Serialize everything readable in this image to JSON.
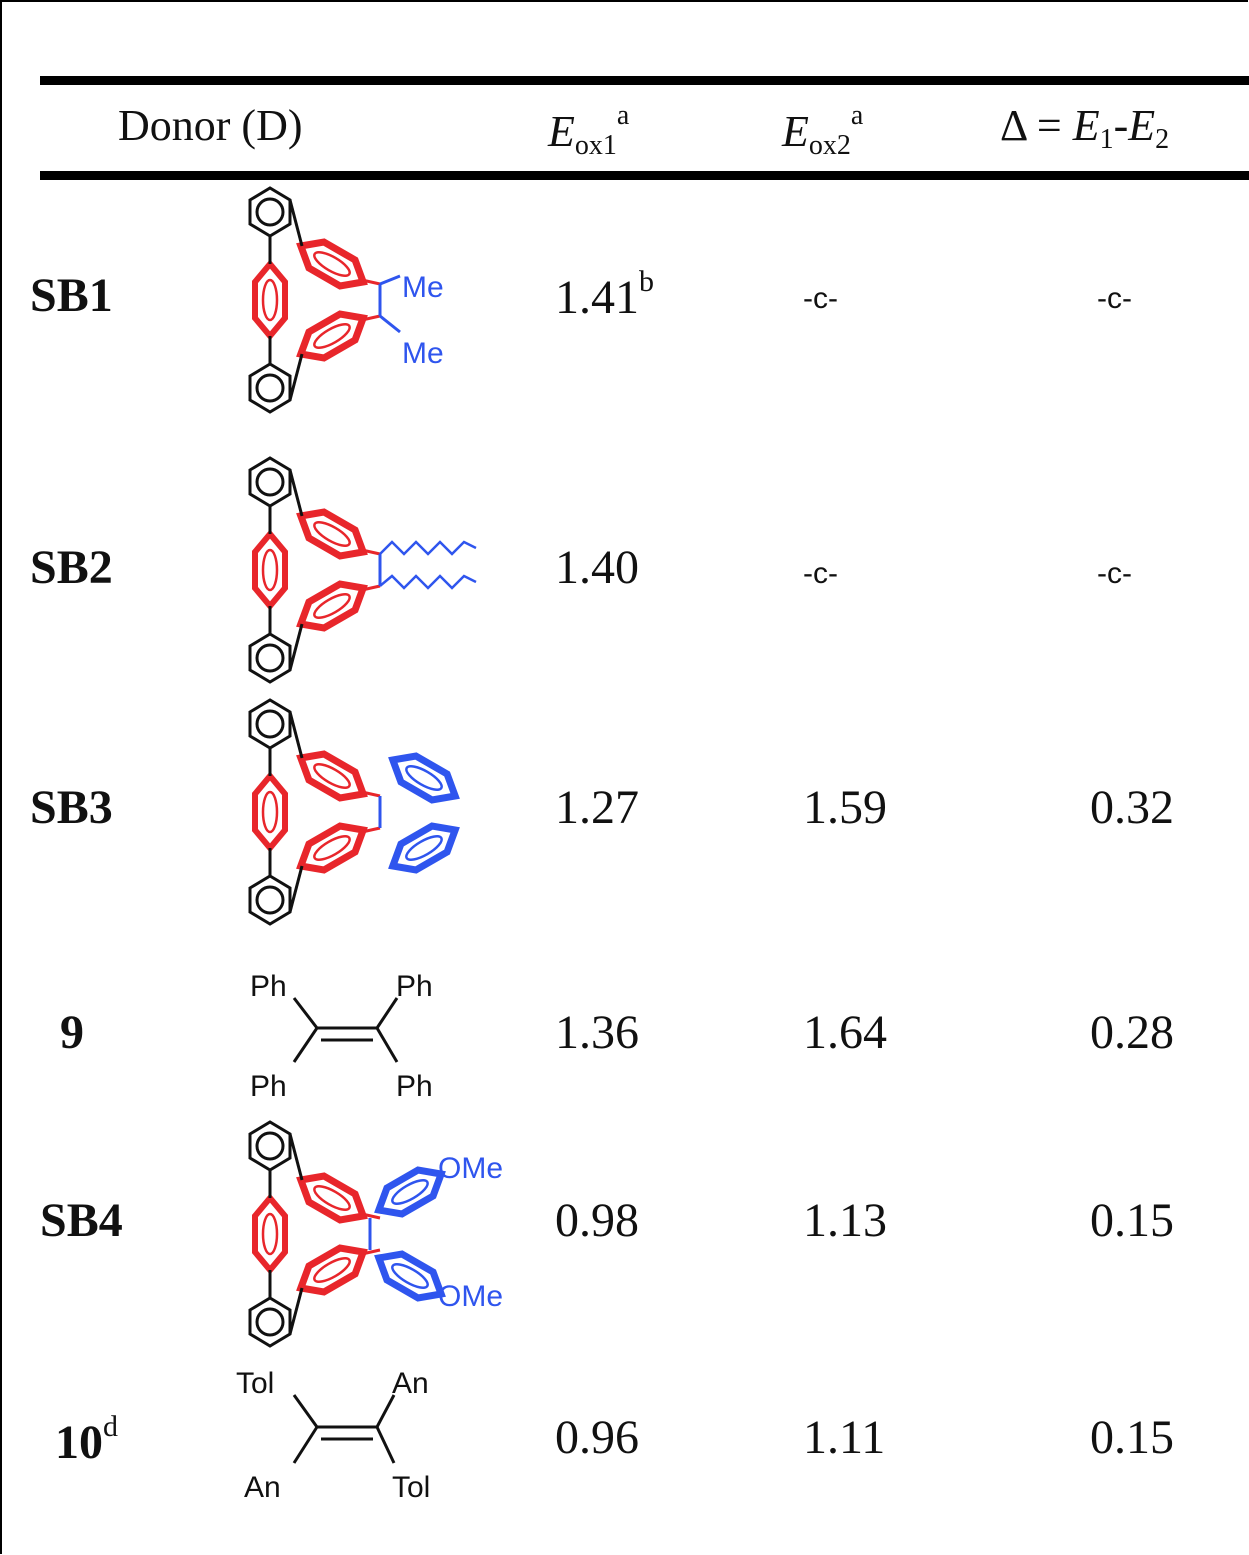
{
  "header": {
    "donor": "Donor (D)",
    "eox1_symbol": "E",
    "eox1_sub": "ox1",
    "eox1_sup": "a",
    "eox2_symbol": "E",
    "eox2_sub": "ox2",
    "eox2_sup": "a",
    "delta_prefix": "Δ = ",
    "delta_e1": "E",
    "delta_e1_sub": "1",
    "delta_dash": "-",
    "delta_e2": "E",
    "delta_e2_sub": "2"
  },
  "rows": [
    {
      "label": "SB1",
      "label_sup": "",
      "eox1": "1.41",
      "eox1_sup": "b",
      "eox2": "-c-",
      "delta": "-c-",
      "structure": {
        "substituents": [
          "Me",
          "Me"
        ]
      }
    },
    {
      "label": "SB2",
      "label_sup": "",
      "eox1": "1.40",
      "eox1_sup": "",
      "eox2": "-c-",
      "delta": "-c-",
      "structure": {
        "substituents": []
      }
    },
    {
      "label": "SB3",
      "label_sup": "",
      "eox1": "1.27",
      "eox1_sup": "",
      "eox2": "1.59",
      "delta": "0.32",
      "structure": {
        "substituents": []
      }
    },
    {
      "label": "9",
      "label_sup": "",
      "eox1": "1.36",
      "eox1_sup": "",
      "eox2": "1.64",
      "delta": "0.28",
      "structure": {
        "substituents": [
          "Ph",
          "Ph",
          "Ph",
          "Ph"
        ]
      }
    },
    {
      "label": "SB4",
      "label_sup": "",
      "eox1": "0.98",
      "eox1_sup": "",
      "eox2": "1.13",
      "delta": "0.15",
      "structure": {
        "substituents": [
          "OMe",
          "OMe"
        ]
      }
    },
    {
      "label": "10",
      "label_sup": "d",
      "eox1": "0.96",
      "eox1_sup": "",
      "eox2": "1.11",
      "delta": "0.15",
      "structure": {
        "substituents": [
          "Tol",
          "An",
          "An",
          "Tol"
        ]
      }
    }
  ],
  "colors": {
    "scaffold": "#e8262b",
    "olefin": "#2f55ee",
    "ink": "#111111"
  }
}
